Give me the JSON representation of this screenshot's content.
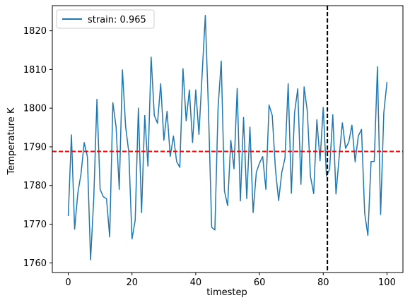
{
  "chart_data": {
    "type": "line",
    "title": "",
    "xlabel": "timestep",
    "ylabel": "Temperature K",
    "xlim": [
      -5,
      105
    ],
    "ylim": [
      1757.5,
      1826.5
    ],
    "xticks": [
      0,
      20,
      40,
      60,
      80,
      100
    ],
    "yticks": [
      1760,
      1770,
      1780,
      1790,
      1800,
      1810,
      1820
    ],
    "grid": false,
    "legend": {
      "placement": "top-left"
    },
    "series": [
      {
        "name": "strain: 0.965",
        "color": "#1f77b4",
        "x": [
          0,
          1,
          2,
          3,
          4,
          5,
          6,
          7,
          8,
          9,
          10,
          11,
          12,
          13,
          14,
          15,
          16,
          17,
          18,
          19,
          20,
          21,
          22,
          23,
          24,
          25,
          26,
          27,
          28,
          29,
          30,
          31,
          32,
          33,
          34,
          35,
          36,
          37,
          38,
          39,
          40,
          41,
          42,
          43,
          44,
          45,
          46,
          47,
          48,
          49,
          50,
          51,
          52,
          53,
          54,
          55,
          56,
          57,
          58,
          59,
          60,
          61,
          62,
          63,
          64,
          65,
          66,
          67,
          68,
          69,
          70,
          71,
          72,
          73,
          74,
          75,
          76,
          77,
          78,
          79,
          80,
          81,
          82,
          83,
          84,
          85,
          86,
          87,
          88,
          89,
          90,
          91,
          92,
          93,
          94,
          95,
          96,
          97,
          98,
          99,
          100
        ],
        "values": [
          1772.1,
          1793.1,
          1768.7,
          1778.0,
          1783.0,
          1791.1,
          1787.5,
          1760.8,
          1776.6,
          1802.3,
          1779.0,
          1777.1,
          1776.6,
          1766.7,
          1801.4,
          1795.2,
          1779.0,
          1809.9,
          1795.2,
          1788.6,
          1766.2,
          1771.0,
          1800.0,
          1773.0,
          1798.1,
          1785.0,
          1813.2,
          1798.1,
          1796.1,
          1806.3,
          1791.7,
          1799.2,
          1787.5,
          1792.8,
          1786.2,
          1784.7,
          1810.2,
          1796.7,
          1804.7,
          1791.1,
          1804.7,
          1793.2,
          1808.7,
          1824.0,
          1799.2,
          1769.2,
          1768.5,
          1800.0,
          1812.2,
          1778.6,
          1774.8,
          1791.7,
          1784.3,
          1805.1,
          1776.0,
          1797.6,
          1776.6,
          1795.1,
          1773.0,
          1783.4,
          1785.8,
          1787.5,
          1779.0,
          1800.8,
          1798.1,
          1784.2,
          1776.1,
          1783.4,
          1787.1,
          1806.3,
          1778.0,
          1798.8,
          1805.0,
          1780.3,
          1805.5,
          1799.2,
          1782.3,
          1777.9,
          1797.0,
          1786.4,
          1800.2,
          1782.4,
          1784.2,
          1798.3,
          1777.8,
          1787.5,
          1796.2,
          1789.6,
          1791.2,
          1795.6,
          1786.1,
          1792.8,
          1794.5,
          1772.8,
          1767.1,
          1786.2,
          1786.2,
          1810.7,
          1772.5,
          1798.8,
          1806.8
        ]
      }
    ],
    "reference_lines": [
      {
        "orientation": "horizontal",
        "value": 1788.8,
        "color": "#ff0000",
        "style": "dashed"
      },
      {
        "orientation": "vertical",
        "value": 81.3,
        "color": "#000000",
        "style": "dashed"
      }
    ]
  }
}
